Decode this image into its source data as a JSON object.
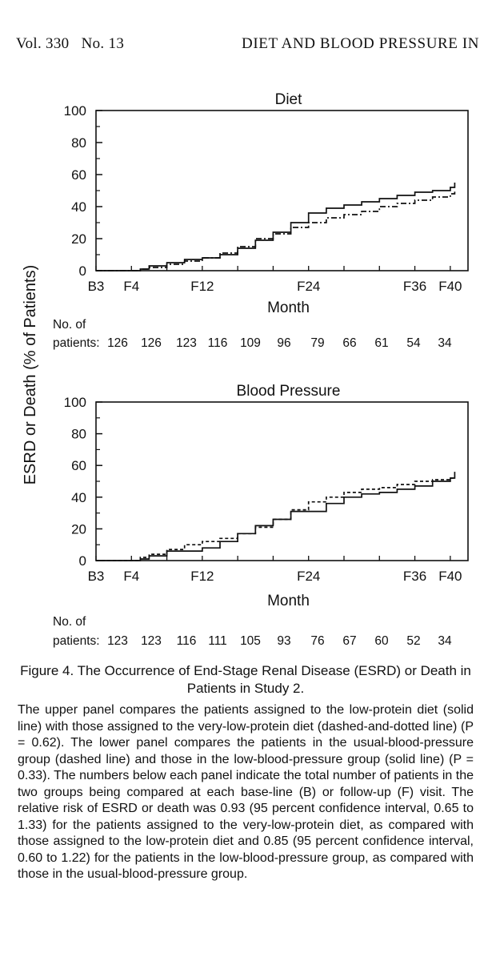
{
  "header": {
    "volume": "Vol. 330   No. 13",
    "running_title": "DIET AND BLOOD PRESSURE IN"
  },
  "shared_ylabel": "ESRD or Death (% of Patients)",
  "chart_data": [
    {
      "type": "line",
      "title": "Diet",
      "xlabel": "Month",
      "ylabel": "ESRD or Death (% of Patients)",
      "ylim": [
        0,
        100
      ],
      "yticks": [
        0,
        20,
        40,
        60,
        80,
        100
      ],
      "xlim": [
        0,
        42
      ],
      "xticks": [
        {
          "label": "B3",
          "month": 0
        },
        {
          "label": "F4",
          "month": 4
        },
        {
          "label": "F12",
          "month": 12
        },
        {
          "label": "F24",
          "month": 24
        },
        {
          "label": "F36",
          "month": 36
        },
        {
          "label": "F40",
          "month": 40
        }
      ],
      "series": [
        {
          "style": "solid",
          "x": [
            0,
            4,
            5,
            6,
            8,
            10,
            12,
            14,
            16,
            18,
            20,
            22,
            24,
            26,
            28,
            30,
            32,
            34,
            36,
            38,
            40,
            40.5
          ],
          "y": [
            0,
            0,
            1,
            3,
            5,
            7,
            8,
            10,
            14,
            19,
            24,
            30,
            36,
            39,
            41,
            43,
            45,
            47,
            49,
            50,
            52,
            55
          ]
        },
        {
          "style": "dashdot",
          "x": [
            0,
            4,
            5,
            6,
            8,
            10,
            12,
            14,
            16,
            18,
            20,
            22,
            24,
            26,
            28,
            30,
            32,
            34,
            36,
            38,
            40,
            40.5
          ],
          "y": [
            0,
            0,
            1,
            2,
            4,
            6,
            8,
            11,
            15,
            20,
            23,
            27,
            30,
            33,
            35,
            37,
            40,
            42,
            44,
            46,
            48,
            50
          ]
        }
      ],
      "patients_label": [
        "No. of",
        "patients:"
      ],
      "patients": [
        "126",
        "126",
        "123",
        "116",
        "109",
        "96",
        "79",
        "66",
        "61",
        "54",
        "34"
      ]
    },
    {
      "type": "line",
      "title": "Blood Pressure",
      "xlabel": "Month",
      "ylabel": "ESRD or Death (% of Patients)",
      "ylim": [
        0,
        100
      ],
      "yticks": [
        0,
        20,
        40,
        60,
        80,
        100
      ],
      "xlim": [
        0,
        42
      ],
      "xticks": [
        {
          "label": "B3",
          "month": 0
        },
        {
          "label": "F4",
          "month": 4
        },
        {
          "label": "F12",
          "month": 12
        },
        {
          "label": "F24",
          "month": 24
        },
        {
          "label": "F36",
          "month": 36
        },
        {
          "label": "F40",
          "month": 40
        }
      ],
      "series": [
        {
          "style": "solid",
          "x": [
            0,
            4,
            5,
            6,
            8,
            10,
            12,
            14,
            16,
            18,
            20,
            22,
            24,
            26,
            28,
            30,
            32,
            34,
            36,
            38,
            40,
            40.5
          ],
          "y": [
            0,
            0,
            1,
            3,
            6,
            6,
            8,
            12,
            17,
            22,
            26,
            31,
            31,
            36,
            40,
            42,
            43,
            45,
            47,
            50,
            52,
            56
          ]
        },
        {
          "style": "dashed",
          "x": [
            0,
            4,
            5,
            6,
            8,
            10,
            12,
            14,
            16,
            18,
            20,
            22,
            24,
            26,
            28,
            30,
            32,
            34,
            36,
            38,
            40,
            40.5
          ],
          "y": [
            0,
            0,
            2,
            4,
            7,
            10,
            12,
            14,
            17,
            21,
            26,
            32,
            37,
            40,
            43,
            45,
            46,
            48,
            50,
            51,
            52,
            53
          ]
        }
      ],
      "patients_label": [
        "No. of",
        "patients:"
      ],
      "patients": [
        "123",
        "123",
        "116",
        "111",
        "105",
        "93",
        "76",
        "67",
        "60",
        "52",
        "34"
      ]
    }
  ],
  "caption": {
    "title": "Figure 4. The Occurrence of End-Stage Renal Disease (ESRD) or Death in Patients in Study 2.",
    "body": "The upper panel compares the patients assigned to the low-protein diet (solid line) with those assigned to the very-low-protein diet (dashed-and-dotted line) (P = 0.62). The lower panel compares the patients in the usual-blood-pressure group (dashed line) and those in the low-blood-pressure group (solid line) (P = 0.33). The numbers below each panel indicate the total number of patients in the two groups being compared at each base-line (B) or follow-up (F) visit. The relative risk of ESRD or death was 0.93 (95 percent confidence interval, 0.65 to 1.33) for the patients assigned to the very-low-protein diet, as compared with those assigned to the low-protein diet and 0.85 (95 percent confidence interval, 0.60 to 1.22) for the patients in the low-blood-pressure group, as compared with those in the usual-blood-pressure group."
  }
}
